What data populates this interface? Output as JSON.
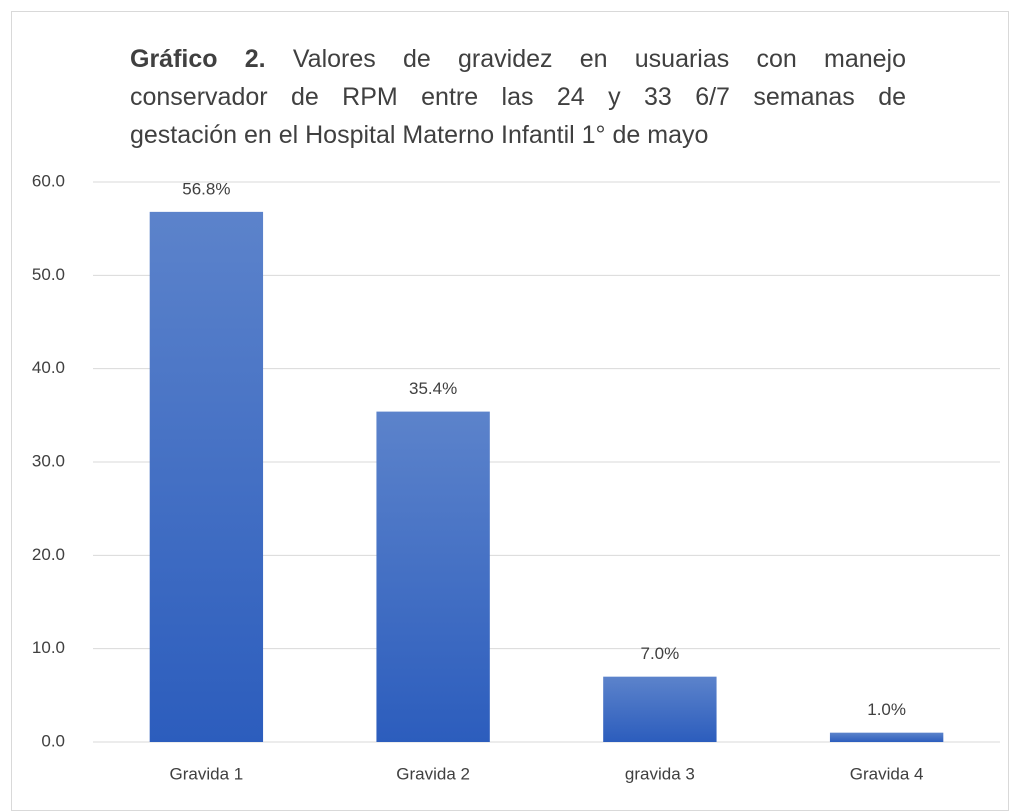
{
  "chart_data": {
    "type": "bar",
    "title_prefix": "Gráfico 2.",
    "title_lines": [
      "Valores de gravidez en usuarias con manejo",
      "conservador de RPM entre las 24 y 33 6/7 semanas de",
      "gestación en el Hospital Materno Infantil 1° de mayo"
    ],
    "categories": [
      "Gravida 1",
      "Gravida 2",
      "gravida 3",
      "Gravida 4"
    ],
    "values": [
      56.8,
      35.4,
      7.0,
      1.0
    ],
    "value_labels": [
      "56.8%",
      "35.4%",
      "7.0%",
      "1.0%"
    ],
    "color": "#3a67c4",
    "ylim": [
      0,
      60
    ],
    "yticks": [
      {
        "value": 0,
        "label": "0.0"
      },
      {
        "value": 10,
        "label": "10.0"
      },
      {
        "value": 20,
        "label": "20.0"
      },
      {
        "value": 30,
        "label": "30.0"
      },
      {
        "value": 40,
        "label": "40.0"
      },
      {
        "value": 50,
        "label": "50.0"
      },
      {
        "value": 60,
        "label": "60.0"
      }
    ],
    "grid": true
  }
}
